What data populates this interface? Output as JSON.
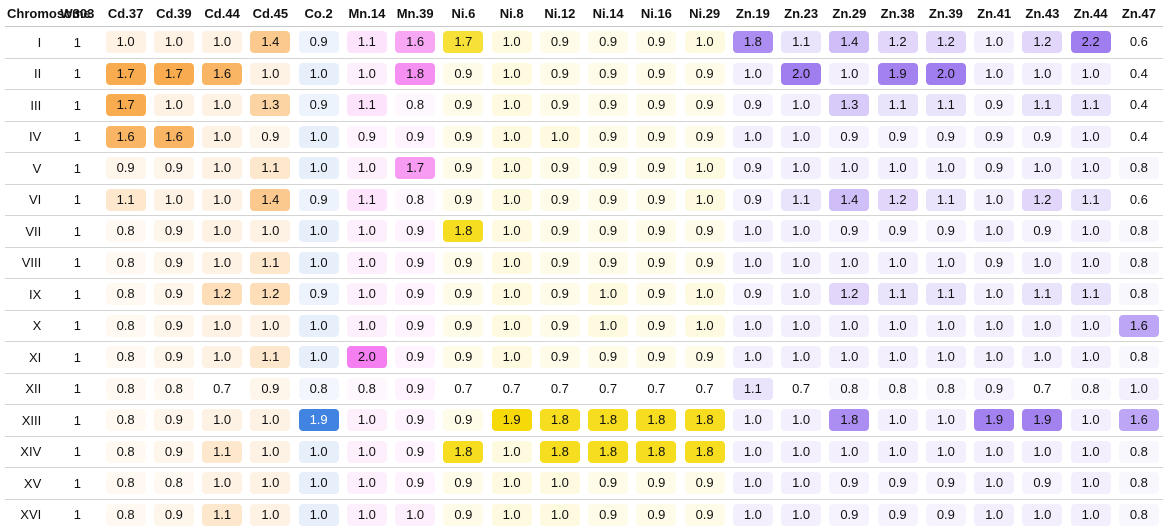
{
  "table": {
    "header_label": "Chromosome",
    "columns": [
      "W303",
      "Cd.37",
      "Cd.39",
      "Cd.44",
      "Cd.45",
      "Co.2",
      "Mn.14",
      "Mn.39",
      "Ni.6",
      "Ni.8",
      "Ni.12",
      "Ni.14",
      "Ni.16",
      "Ni.29",
      "Zn.19",
      "Zn.23",
      "Zn.29",
      "Zn.38",
      "Zn.39",
      "Zn.41",
      "Zn.43",
      "Zn.44",
      "Zn.47"
    ],
    "groups": [
      "W303",
      "Cd",
      "Cd",
      "Cd",
      "Cd",
      "Co",
      "Mn",
      "Mn",
      "Ni",
      "Ni",
      "Ni",
      "Ni",
      "Ni",
      "Ni",
      "Zn",
      "Zn",
      "Zn",
      "Zn",
      "Zn",
      "Zn",
      "Zn",
      "Zn",
      "Zn"
    ],
    "group_colors": {
      "Cd": "#f7941d",
      "Co": "#3a7fe0",
      "Mn": "#f57ff0",
      "Ni": "#f5d800",
      "Zn": "#a07ef0"
    },
    "rows": [
      {
        "label": "I",
        "values": [
          "1",
          "1.0",
          "1.0",
          "1.0",
          "1.4",
          "0.9",
          "1.1",
          "1.6",
          "1.7",
          "1.0",
          "0.9",
          "0.9",
          "0.9",
          "1.0",
          "1.8",
          "1.1",
          "1.4",
          "1.2",
          "1.2",
          "1.0",
          "1.2",
          "2.2",
          "0.6"
        ]
      },
      {
        "label": "II",
        "values": [
          "1",
          "1.7",
          "1.7",
          "1.6",
          "1.0",
          "1.0",
          "1.0",
          "1.8",
          "0.9",
          "1.0",
          "0.9",
          "0.9",
          "0.9",
          "0.9",
          "1.0",
          "2.0",
          "1.0",
          "1.9",
          "2.0",
          "1.0",
          "1.0",
          "1.0",
          "0.4"
        ]
      },
      {
        "label": "III",
        "values": [
          "1",
          "1.7",
          "1.0",
          "1.0",
          "1.3",
          "0.9",
          "1.1",
          "0.8",
          "0.9",
          "1.0",
          "0.9",
          "0.9",
          "0.9",
          "0.9",
          "0.9",
          "1.0",
          "1.3",
          "1.1",
          "1.1",
          "0.9",
          "1.1",
          "1.1",
          "0.4"
        ]
      },
      {
        "label": "IV",
        "values": [
          "1",
          "1.6",
          "1.6",
          "1.0",
          "0.9",
          "1.0",
          "0.9",
          "0.9",
          "0.9",
          "1.0",
          "1.0",
          "0.9",
          "0.9",
          "0.9",
          "1.0",
          "1.0",
          "0.9",
          "0.9",
          "0.9",
          "0.9",
          "0.9",
          "1.0",
          "0.4"
        ]
      },
      {
        "label": "V",
        "values": [
          "1",
          "0.9",
          "0.9",
          "1.0",
          "1.1",
          "1.0",
          "1.0",
          "1.7",
          "0.9",
          "1.0",
          "0.9",
          "0.9",
          "0.9",
          "1.0",
          "0.9",
          "1.0",
          "1.0",
          "1.0",
          "1.0",
          "0.9",
          "1.0",
          "1.0",
          "0.8"
        ]
      },
      {
        "label": "VI",
        "values": [
          "1",
          "1.1",
          "1.0",
          "1.0",
          "1.4",
          "0.9",
          "1.1",
          "0.8",
          "0.9",
          "1.0",
          "0.9",
          "0.9",
          "0.9",
          "1.0",
          "0.9",
          "1.1",
          "1.4",
          "1.2",
          "1.1",
          "1.0",
          "1.2",
          "1.1",
          "0.6"
        ]
      },
      {
        "label": "VII",
        "values": [
          "1",
          "0.8",
          "0.9",
          "1.0",
          "1.0",
          "1.0",
          "1.0",
          "0.9",
          "1.8",
          "1.0",
          "0.9",
          "0.9",
          "0.9",
          "0.9",
          "1.0",
          "1.0",
          "0.9",
          "0.9",
          "0.9",
          "1.0",
          "0.9",
          "1.0",
          "0.8"
        ]
      },
      {
        "label": "VIII",
        "values": [
          "1",
          "0.8",
          "0.9",
          "1.0",
          "1.1",
          "1.0",
          "1.0",
          "0.9",
          "0.9",
          "1.0",
          "0.9",
          "0.9",
          "0.9",
          "0.9",
          "1.0",
          "1.0",
          "1.0",
          "1.0",
          "1.0",
          "0.9",
          "1.0",
          "1.0",
          "0.8"
        ]
      },
      {
        "label": "IX",
        "values": [
          "1",
          "0.8",
          "0.9",
          "1.2",
          "1.2",
          "0.9",
          "1.0",
          "0.9",
          "0.9",
          "1.0",
          "0.9",
          "1.0",
          "0.9",
          "1.0",
          "0.9",
          "1.0",
          "1.2",
          "1.1",
          "1.1",
          "1.0",
          "1.1",
          "1.1",
          "0.8"
        ]
      },
      {
        "label": "X",
        "values": [
          "1",
          "0.8",
          "0.9",
          "1.0",
          "1.0",
          "1.0",
          "1.0",
          "0.9",
          "0.9",
          "1.0",
          "0.9",
          "1.0",
          "0.9",
          "1.0",
          "1.0",
          "1.0",
          "1.0",
          "1.0",
          "1.0",
          "1.0",
          "1.0",
          "1.0",
          "1.6"
        ]
      },
      {
        "label": "XI",
        "values": [
          "1",
          "0.8",
          "0.9",
          "1.0",
          "1.1",
          "1.0",
          "2.0",
          "0.9",
          "0.9",
          "1.0",
          "0.9",
          "0.9",
          "0.9",
          "0.9",
          "1.0",
          "1.0",
          "1.0",
          "1.0",
          "1.0",
          "1.0",
          "1.0",
          "1.0",
          "0.8"
        ]
      },
      {
        "label": "XII",
        "values": [
          "1",
          "0.8",
          "0.8",
          "0.7",
          "0.9",
          "0.8",
          "0.8",
          "0.9",
          "0.7",
          "0.7",
          "0.7",
          "0.7",
          "0.7",
          "0.7",
          "1.1",
          "0.7",
          "0.8",
          "0.8",
          "0.8",
          "0.9",
          "0.7",
          "0.8",
          "1.0"
        ]
      },
      {
        "label": "XIII",
        "values": [
          "1",
          "0.8",
          "0.9",
          "1.0",
          "1.0",
          "1.9",
          "1.0",
          "0.9",
          "0.9",
          "1.9",
          "1.8",
          "1.8",
          "1.8",
          "1.8",
          "1.0",
          "1.0",
          "1.8",
          "1.0",
          "1.0",
          "1.9",
          "1.9",
          "1.0",
          "1.6"
        ]
      },
      {
        "label": "XIV",
        "values": [
          "1",
          "0.8",
          "0.9",
          "1.1",
          "1.0",
          "1.0",
          "1.0",
          "0.9",
          "1.8",
          "1.0",
          "1.8",
          "1.8",
          "1.8",
          "1.8",
          "1.0",
          "1.0",
          "1.0",
          "1.0",
          "1.0",
          "1.0",
          "1.0",
          "1.0",
          "0.8"
        ]
      },
      {
        "label": "XV",
        "values": [
          "1",
          "0.8",
          "0.8",
          "1.0",
          "1.0",
          "1.0",
          "1.0",
          "0.9",
          "0.9",
          "1.0",
          "1.0",
          "0.9",
          "0.9",
          "0.9",
          "1.0",
          "1.0",
          "0.9",
          "0.9",
          "0.9",
          "1.0",
          "0.9",
          "1.0",
          "0.8"
        ]
      },
      {
        "label": "XVI",
        "values": [
          "1",
          "0.8",
          "0.9",
          "1.1",
          "1.0",
          "1.0",
          "1.0",
          "1.0",
          "0.9",
          "1.0",
          "1.0",
          "0.9",
          "0.9",
          "0.9",
          "1.0",
          "1.0",
          "0.9",
          "0.9",
          "0.9",
          "1.0",
          "1.0",
          "1.0",
          "0.8"
        ]
      }
    ]
  }
}
